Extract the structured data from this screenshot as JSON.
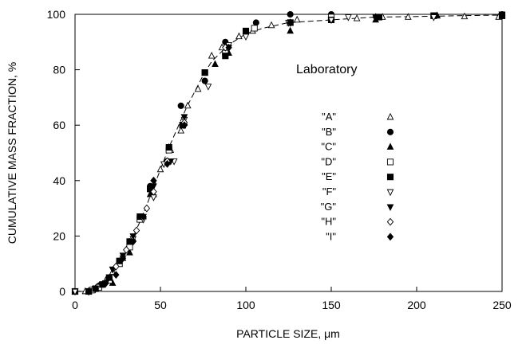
{
  "chart_data": {
    "type": "scatter",
    "xlabel": "PARTICLE SIZE,  μm",
    "ylabel": "CUMULATIVE MASS FRACTION, %",
    "xlim": [
      0,
      250
    ],
    "ylim": [
      0,
      100
    ],
    "x_ticks": [
      "0",
      "50",
      "100",
      "150",
      "200",
      "250"
    ],
    "y_ticks": [
      "0",
      "20",
      "40",
      "60",
      "80",
      "100"
    ],
    "grid": false,
    "legend_title": "Laboratory",
    "legend_position": "center-right",
    "trend_line": {
      "style": "dashed",
      "points": [
        [
          0,
          0
        ],
        [
          8,
          0.3
        ],
        [
          12,
          1.5
        ],
        [
          16,
          3
        ],
        [
          20,
          5
        ],
        [
          25,
          9
        ],
        [
          30,
          14
        ],
        [
          35,
          21
        ],
        [
          40,
          28
        ],
        [
          45,
          36
        ],
        [
          50,
          44
        ],
        [
          55,
          52
        ],
        [
          60,
          59
        ],
        [
          65,
          66
        ],
        [
          70,
          72
        ],
        [
          75,
          78
        ],
        [
          80,
          83
        ],
        [
          85,
          86
        ],
        [
          90,
          89
        ],
        [
          95,
          91
        ],
        [
          100,
          93
        ],
        [
          110,
          95
        ],
        [
          125,
          97
        ],
        [
          150,
          98
        ],
        [
          175,
          99
        ],
        [
          200,
          99.2
        ],
        [
          225,
          99.5
        ],
        [
          250,
          99.7
        ]
      ]
    },
    "series": [
      {
        "name": "\"A\"",
        "marker": "triangle-up-open",
        "points": [
          [
            0,
            0
          ],
          [
            6,
            0
          ],
          [
            10,
            0.5
          ],
          [
            14,
            2
          ],
          [
            18,
            4
          ],
          [
            22,
            7
          ],
          [
            28,
            12
          ],
          [
            34,
            19
          ],
          [
            40,
            27
          ],
          [
            46,
            35
          ],
          [
            50,
            44
          ],
          [
            56,
            51
          ],
          [
            62,
            58
          ],
          [
            66,
            67
          ],
          [
            72,
            73
          ],
          [
            80,
            85
          ],
          [
            86,
            88
          ],
          [
            96,
            92
          ],
          [
            104,
            94
          ],
          [
            115,
            96
          ],
          [
            130,
            98
          ],
          [
            150,
            99
          ],
          [
            165,
            98.5
          ],
          [
            180,
            99
          ],
          [
            195,
            99
          ],
          [
            212,
            99.5
          ],
          [
            228,
            99.2
          ],
          [
            248,
            99
          ]
        ]
      },
      {
        "name": "\"B\"",
        "marker": "circle-filled",
        "points": [
          [
            0,
            0
          ],
          [
            10,
            0.5
          ],
          [
            14,
            2
          ],
          [
            20,
            5
          ],
          [
            26,
            11
          ],
          [
            32,
            18
          ],
          [
            38,
            27
          ],
          [
            44,
            38
          ],
          [
            54,
            47
          ],
          [
            62,
            67
          ],
          [
            76,
            76
          ],
          [
            88,
            90
          ],
          [
            106,
            97
          ],
          [
            126,
            100
          ],
          [
            150,
            100
          ],
          [
            178,
            99
          ],
          [
            210,
            99.5
          ],
          [
            250,
            100
          ]
        ]
      },
      {
        "name": "\"C\"",
        "marker": "triangle-up-filled",
        "points": [
          [
            8,
            0
          ],
          [
            12,
            1
          ],
          [
            16,
            2.5
          ],
          [
            22,
            3
          ],
          [
            26,
            10
          ],
          [
            32,
            14
          ],
          [
            38,
            26
          ],
          [
            44,
            35
          ],
          [
            55,
            52
          ],
          [
            64,
            61
          ],
          [
            82,
            82
          ],
          [
            90,
            86
          ],
          [
            126,
            94
          ],
          [
            176,
            98
          ],
          [
            212,
            99.5
          ],
          [
            250,
            99.5
          ]
        ]
      },
      {
        "name": "\"D\"",
        "marker": "square-open",
        "points": [
          [
            0,
            0
          ],
          [
            10,
            0.5
          ],
          [
            14,
            1.5
          ],
          [
            20,
            4
          ],
          [
            26,
            10
          ],
          [
            32,
            16
          ],
          [
            38,
            26
          ],
          [
            44,
            37
          ],
          [
            55,
            51
          ],
          [
            63,
            60
          ],
          [
            76,
            79
          ],
          [
            88,
            86
          ],
          [
            105,
            95
          ],
          [
            126,
            97
          ],
          [
            150,
            99
          ],
          [
            178,
            99
          ],
          [
            210,
            99.5
          ],
          [
            250,
            99.5
          ]
        ]
      },
      {
        "name": "\"E\"",
        "marker": "square-filled",
        "points": [
          [
            0,
            0
          ],
          [
            8,
            0
          ],
          [
            12,
            1
          ],
          [
            16,
            2.5
          ],
          [
            20,
            5
          ],
          [
            26,
            11
          ],
          [
            32,
            18
          ],
          [
            38,
            27
          ],
          [
            44,
            37
          ],
          [
            55,
            52
          ],
          [
            63,
            60
          ],
          [
            76,
            79
          ],
          [
            88,
            85
          ],
          [
            100,
            94
          ],
          [
            126,
            97
          ],
          [
            150,
            98
          ],
          [
            178,
            99
          ],
          [
            210,
            99.5
          ],
          [
            250,
            99.5
          ]
        ]
      },
      {
        "name": "\"F\"",
        "marker": "triangle-down-open",
        "points": [
          [
            0,
            0
          ],
          [
            8,
            0
          ],
          [
            12,
            1
          ],
          [
            18,
            3
          ],
          [
            22,
            8
          ],
          [
            28,
            12
          ],
          [
            34,
            19
          ],
          [
            40,
            26
          ],
          [
            46,
            34
          ],
          [
            52,
            46
          ],
          [
            58,
            47
          ],
          [
            64,
            62
          ],
          [
            78,
            74
          ],
          [
            90,
            89
          ],
          [
            100,
            92
          ],
          [
            125,
            97
          ],
          [
            150,
            98
          ],
          [
            160,
            99
          ],
          [
            210,
            99
          ],
          [
            250,
            100
          ]
        ]
      },
      {
        "name": "\"G\"",
        "marker": "triangle-down-filled",
        "points": [
          [
            8,
            0
          ],
          [
            12,
            1
          ],
          [
            18,
            3
          ],
          [
            22,
            8
          ],
          [
            28,
            13
          ],
          [
            34,
            20
          ],
          [
            40,
            27
          ],
          [
            46,
            38
          ],
          [
            56,
            47
          ],
          [
            64,
            63
          ],
          [
            90,
            88
          ],
          [
            126,
            97
          ],
          [
            176,
            99
          ],
          [
            250,
            100
          ]
        ]
      },
      {
        "name": "\"H\"",
        "marker": "diamond-open",
        "points": [
          [
            8,
            0
          ],
          [
            12,
            1
          ],
          [
            18,
            3
          ],
          [
            24,
            9
          ],
          [
            30,
            15
          ],
          [
            36,
            22
          ],
          [
            42,
            30
          ],
          [
            46,
            36
          ],
          [
            54,
            47
          ],
          [
            64,
            61
          ],
          [
            88,
            88
          ],
          [
            126,
            97
          ],
          [
            176,
            99
          ],
          [
            250,
            99.5
          ]
        ]
      },
      {
        "name": "\"I\"",
        "marker": "diamond-filled",
        "points": [
          [
            8,
            0
          ],
          [
            12,
            1
          ],
          [
            18,
            3
          ],
          [
            24,
            6
          ],
          [
            28,
            12
          ],
          [
            34,
            18
          ],
          [
            40,
            27
          ],
          [
            46,
            40
          ],
          [
            54,
            46
          ],
          [
            64,
            60
          ],
          [
            90,
            88
          ],
          [
            126,
            97
          ],
          [
            176,
            99
          ],
          [
            250,
            99.5
          ]
        ]
      }
    ]
  }
}
